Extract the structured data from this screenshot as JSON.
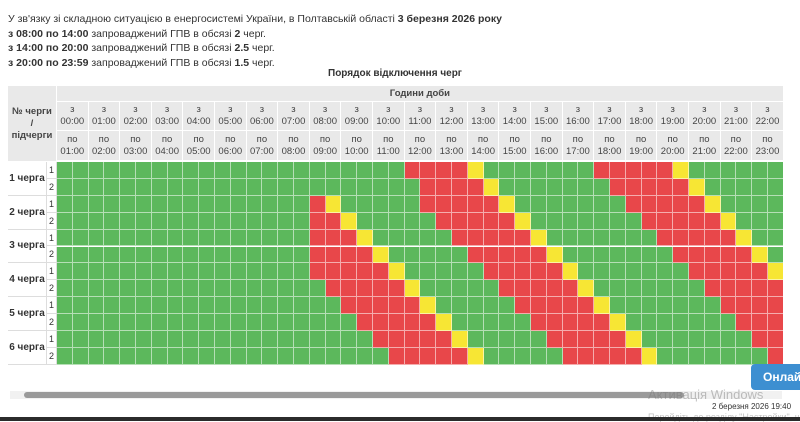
{
  "notice": {
    "lines": [
      [
        {
          "text": "У зв'язку зі складною ситуацією в енергосистемі України, в Полтавській області ",
          "bold": false
        },
        {
          "text": "3 березня 2026 року",
          "bold": true
        }
      ],
      [
        {
          "text": "з 08:00 по 14:00",
          "bold": true
        },
        {
          "text": " запроваджений ГПВ в обсязі ",
          "bold": false
        },
        {
          "text": "2",
          "bold": true
        },
        {
          "text": " черг.",
          "bold": false
        }
      ],
      [
        {
          "text": "з 14:00 по 20:00",
          "bold": true
        },
        {
          "text": " запроваджений ГПВ в обсязі ",
          "bold": false
        },
        {
          "text": "2.5",
          "bold": true
        },
        {
          "text": " черг.",
          "bold": false
        }
      ],
      [
        {
          "text": "з 20:00 по 23:59",
          "bold": true
        },
        {
          "text": " запроваджений ГПВ в обсязі ",
          "bold": false
        },
        {
          "text": "1.5",
          "bold": true
        },
        {
          "text": " черг.",
          "bold": false
        }
      ]
    ]
  },
  "schedule": {
    "title": "Порядок відключення черг",
    "corner_header": [
      "№ черги",
      "/",
      "підчерги"
    ],
    "hours_header": "Години доби",
    "from_word": "з",
    "to_word": "по",
    "hours": [
      {
        "from": "00:00",
        "to": "01:00"
      },
      {
        "from": "01:00",
        "to": "02:00"
      },
      {
        "from": "02:00",
        "to": "03:00"
      },
      {
        "from": "03:00",
        "to": "04:00"
      },
      {
        "from": "04:00",
        "to": "05:00"
      },
      {
        "from": "05:00",
        "to": "06:00"
      },
      {
        "from": "06:00",
        "to": "07:00"
      },
      {
        "from": "07:00",
        "to": "08:00"
      },
      {
        "from": "08:00",
        "to": "09:00"
      },
      {
        "from": "09:00",
        "to": "10:00"
      },
      {
        "from": "10:00",
        "to": "11:00"
      },
      {
        "from": "11:00",
        "to": "12:00"
      },
      {
        "from": "12:00",
        "to": "13:00"
      },
      {
        "from": "13:00",
        "to": "14:00"
      },
      {
        "from": "14:00",
        "to": "15:00"
      },
      {
        "from": "15:00",
        "to": "16:00"
      },
      {
        "from": "16:00",
        "to": "17:00"
      },
      {
        "from": "17:00",
        "to": "18:00"
      },
      {
        "from": "18:00",
        "to": "19:00"
      },
      {
        "from": "19:00",
        "to": "20:00"
      },
      {
        "from": "20:00",
        "to": "21:00"
      },
      {
        "from": "21:00",
        "to": "22:00"
      },
      {
        "from": "22:00",
        "to": "23:00"
      }
    ],
    "colors": {
      "g": "#5cb85c",
      "r": "#e8474a",
      "y": "#f7e634"
    },
    "queues": [
      {
        "label": "1 черга",
        "subqueues": [
          1,
          2
        ],
        "rows": [
          "ggggggggggggggggggggggrrrrygggggggrrrrrygggggg",
          "gggggggggggggggggggggggrrrrygggggggrrrrryggggg"
        ]
      },
      {
        "label": "2 черга",
        "subqueues": [
          1,
          2
        ],
        "rows": [
          "ggggggggggggggggrygggggrrrrrygggggggrrrrrygggg",
          "ggggggggggggggggrrygggggrrrrrygggggggrrrrryggg"
        ]
      },
      {
        "label": "3 черга",
        "subqueues": [
          1,
          2
        ],
        "rows": [
          "ggggggggggggggggrrrygggggrrrrrygggggggrrrrrygg",
          "ggggggggggggggggrrrrygggggrrrrrygggggggrrrrryg"
        ]
      },
      {
        "label": "4 черга",
        "subqueues": [
          1,
          2
        ],
        "rows": [
          "ggggggggggggggggrrrrrygggggrrrrrygggggggrrrrry",
          "gggggggggggggggggrrrrrygggggrrrrrygggggggrrrrr"
        ]
      },
      {
        "label": "5 черга",
        "subqueues": [
          1,
          2
        ],
        "rows": [
          "ggggggggggggggggggrrrrrygggggrrrrrygggggggrrrr",
          "gggggggggggggggggggrrrrrygggggrrrrrygggggggrrr"
        ]
      },
      {
        "label": "6 черга",
        "subqueues": [
          1,
          2
        ],
        "rows": [
          "ggggggggggggggggggggrrrrrygggggrrrrrygggggggrr",
          "gggggggggggggggggggggrrrrrygggggrrrrrygggggggr"
        ]
      }
    ]
  },
  "button": "Онлайн",
  "watermark": {
    "title": "Активація Windows",
    "text": "Перейдіть до розділу \"Настройки\", щоб активувати Windows."
  },
  "clock": "2 березня 2026 19:40"
}
